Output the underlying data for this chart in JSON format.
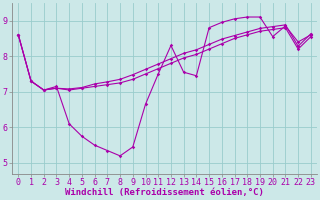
{
  "xlabel": "Windchill (Refroidissement éolien,°C)",
  "background_color": "#cce8e8",
  "line_color": "#aa00aa",
  "grid_color": "#99cccc",
  "xlim": [
    -0.5,
    23.5
  ],
  "ylim": [
    4.7,
    9.5
  ],
  "xticks": [
    0,
    1,
    2,
    3,
    4,
    5,
    6,
    7,
    8,
    9,
    10,
    11,
    12,
    13,
    14,
    15,
    16,
    17,
    18,
    19,
    20,
    21,
    22,
    23
  ],
  "yticks": [
    5,
    6,
    7,
    8,
    9
  ],
  "line1_y": [
    8.6,
    7.3,
    7.05,
    7.15,
    6.1,
    5.75,
    5.5,
    5.35,
    5.2,
    5.45,
    6.65,
    7.5,
    8.3,
    7.55,
    7.45,
    8.8,
    8.95,
    9.05,
    9.1,
    9.1,
    8.55,
    8.85,
    8.4,
    8.6
  ],
  "line2_y": [
    8.6,
    7.3,
    7.05,
    7.1,
    7.05,
    7.1,
    7.15,
    7.2,
    7.25,
    7.35,
    7.5,
    7.65,
    7.8,
    7.95,
    8.05,
    8.2,
    8.35,
    8.5,
    8.6,
    8.7,
    8.75,
    8.8,
    8.2,
    8.55
  ],
  "line3_y": [
    8.6,
    7.3,
    7.05,
    7.1,
    7.08,
    7.12,
    7.22,
    7.28,
    7.35,
    7.48,
    7.63,
    7.78,
    7.93,
    8.08,
    8.18,
    8.33,
    8.48,
    8.58,
    8.68,
    8.78,
    8.83,
    8.88,
    8.28,
    8.63
  ],
  "marker": "D",
  "markersize": 1.8,
  "linewidth": 0.8,
  "fontsize_xlabel": 6.5,
  "fontsize_ticks": 6
}
